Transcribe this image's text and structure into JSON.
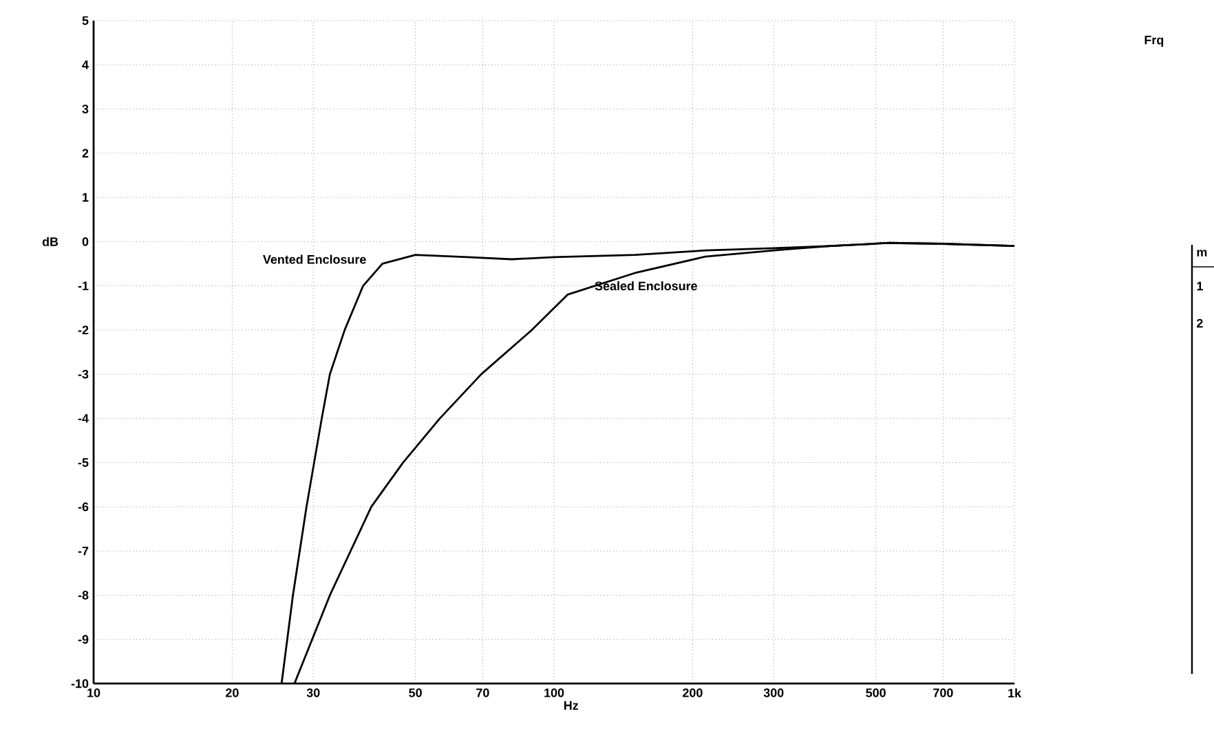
{
  "chart_data": {
    "type": "line",
    "xlabel": "Hz",
    "ylabel": "dB",
    "log": "x",
    "grid": true,
    "marker": "none",
    "line_style": "solid",
    "legend": false,
    "xlim": [
      10,
      1000
    ],
    "ylim": [
      -10,
      5
    ],
    "xticks": [
      10,
      20,
      30,
      50,
      70,
      100,
      200,
      300,
      500,
      700,
      {
        "value": 1000,
        "label": "1k"
      }
    ],
    "yticks": [
      -10,
      -9,
      -8,
      -7,
      -6,
      -5,
      -4,
      -3,
      -2,
      -1,
      0,
      1,
      2,
      3,
      4,
      5
    ],
    "series": [
      {
        "name": "Vented Enclosure",
        "color": "#000000",
        "x": [
          25.6,
          27.1,
          29,
          31.3,
          32.6,
          35.1,
          38.5,
          42.4,
          50,
          65,
          81,
          100,
          150,
          213,
          300,
          400,
          535,
          700,
          1000
        ],
        "values": [
          -10,
          -8,
          -6,
          -4,
          -3,
          -2,
          -1,
          -0.5,
          -0.3,
          -0.35,
          -0.4,
          -0.35,
          -0.3,
          -0.2,
          -0.15,
          -0.1,
          -0.03,
          -0.05,
          -0.1
        ]
      },
      {
        "name": "Sealed Enclosure",
        "color": "#000000",
        "x": [
          27.3,
          32.6,
          40.1,
          47,
          56.5,
          69.5,
          89.5,
          107,
          151,
          213,
          315,
          400,
          535,
          700,
          1000
        ],
        "values": [
          -10,
          -8,
          -6,
          -5,
          -4,
          -3,
          -2,
          -1.2,
          -0.7,
          -0.34,
          -0.18,
          -0.1,
          -0.03,
          -0.05,
          -0.1
        ]
      }
    ],
    "annotations": [
      "Frq",
      "m",
      "1",
      "2"
    ]
  }
}
